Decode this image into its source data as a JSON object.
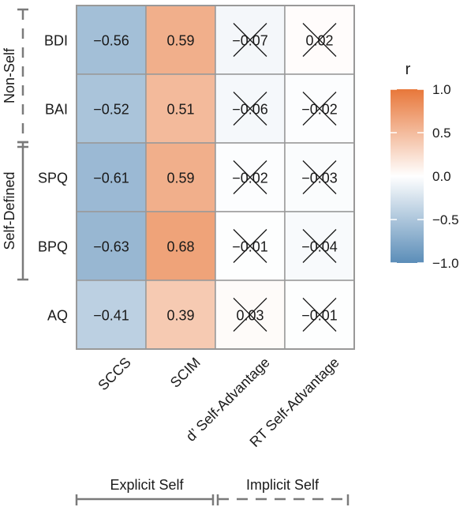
{
  "chart_data": {
    "type": "heatmap",
    "rows": [
      "BDI",
      "BAI",
      "SPQ",
      "BPQ",
      "AQ"
    ],
    "columns": [
      "SCCS",
      "SCIM",
      "d’ Self-Advantage",
      "RT Self-Advantage"
    ],
    "values": [
      [
        -0.56,
        0.59,
        -0.07,
        0.02
      ],
      [
        -0.52,
        0.51,
        -0.06,
        -0.02
      ],
      [
        -0.61,
        0.59,
        -0.02,
        -0.03
      ],
      [
        -0.63,
        0.68,
        -0.01,
        -0.04
      ],
      [
        -0.41,
        0.39,
        0.03,
        -0.01
      ]
    ],
    "labels": [
      [
        "−0.56",
        "0.59",
        "−0.07",
        "0.02"
      ],
      [
        "−0.52",
        "0.51",
        "−0.06",
        "−0.02"
      ],
      [
        "−0.61",
        "0.59",
        "−0.02",
        "−0.03"
      ],
      [
        "−0.63",
        "0.68",
        "−0.01",
        "−0.04"
      ],
      [
        "−0.41",
        "0.39",
        "0.03",
        "−0.01"
      ]
    ],
    "crossed_out": [
      [
        false,
        false,
        true,
        true
      ],
      [
        false,
        false,
        true,
        true
      ],
      [
        false,
        false,
        true,
        true
      ],
      [
        false,
        false,
        true,
        true
      ],
      [
        false,
        false,
        true,
        true
      ]
    ],
    "row_groups": [
      {
        "label": "Non-Self",
        "rows": [
          "BDI",
          "BAI"
        ],
        "line": "dashed"
      },
      {
        "label": "Self-Defined",
        "rows": [
          "SPQ",
          "BPQ"
        ],
        "line": "solid"
      }
    ],
    "column_groups": [
      {
        "label": "Explicit Self",
        "columns": [
          "SCCS",
          "SCIM"
        ],
        "line": "solid"
      },
      {
        "label": "Implicit Self",
        "columns": [
          "d’ Self-Advantage",
          "RT Self-Advantage"
        ],
        "line": "dashed"
      }
    ],
    "legend": {
      "title": "r",
      "ticks": [
        "1.0",
        "0.5",
        "0.0",
        "−0.5",
        "−1.0"
      ],
      "tick_values": [
        1.0,
        0.5,
        0.0,
        -0.5,
        -1.0
      ],
      "range": [
        -1.0,
        1.0
      ],
      "placement": "right"
    },
    "colors": {
      "low": "#5b8db8",
      "mid": "#ffffff",
      "high": "#e8773a",
      "border": "#999999"
    }
  }
}
